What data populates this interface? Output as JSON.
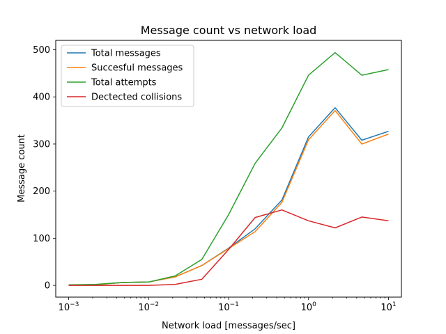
{
  "chart_data": {
    "type": "line",
    "title": "Message count vs network load",
    "xlabel": "Network load [messages/sec]",
    "ylabel": "Message count",
    "xscale": "log",
    "xlim": [
      0.00069,
      14.5
    ],
    "ylim": [
      -25,
      520
    ],
    "grid": false,
    "legend_position": "top-left",
    "x": [
      0.001,
      0.00215,
      0.00464,
      0.01,
      0.0215,
      0.0464,
      0.1,
      0.215,
      0.464,
      1,
      2.15,
      4.64,
      10
    ],
    "x_ticks": [
      {
        "value": 0.001,
        "base": "10",
        "exp": "−3"
      },
      {
        "value": 0.01,
        "base": "10",
        "exp": "−2"
      },
      {
        "value": 0.1,
        "base": "10",
        "exp": "−1"
      },
      {
        "value": 1,
        "base": "10",
        "exp": "0"
      },
      {
        "value": 10,
        "base": "10",
        "exp": "1"
      }
    ],
    "y_ticks": [
      {
        "value": 0,
        "label": "0"
      },
      {
        "value": 100,
        "label": "100"
      },
      {
        "value": 200,
        "label": "200"
      },
      {
        "value": 300,
        "label": "300"
      },
      {
        "value": 400,
        "label": "400"
      },
      {
        "value": 500,
        "label": "500"
      }
    ],
    "series": [
      {
        "name": "Total messages",
        "color": "#1f77b4",
        "values": [
          1,
          1,
          6,
          7,
          18,
          42,
          79,
          120,
          181,
          315,
          377,
          308,
          327
        ]
      },
      {
        "name": "Succesful messages",
        "color": "#ff7f0e",
        "values": [
          1,
          1,
          6,
          7,
          18,
          42,
          78,
          114,
          176,
          309,
          371,
          300,
          321
        ]
      },
      {
        "name": "Total attempts",
        "color": "#2ca02c",
        "values": [
          1,
          2,
          6,
          7,
          20,
          55,
          150,
          259,
          334,
          446,
          494,
          446,
          458
        ]
      },
      {
        "name": "Dectected collisions",
        "color": "#d62728",
        "values": [
          0,
          0,
          0,
          0,
          2,
          13,
          76,
          144,
          160,
          137,
          122,
          145,
          137
        ]
      }
    ]
  }
}
